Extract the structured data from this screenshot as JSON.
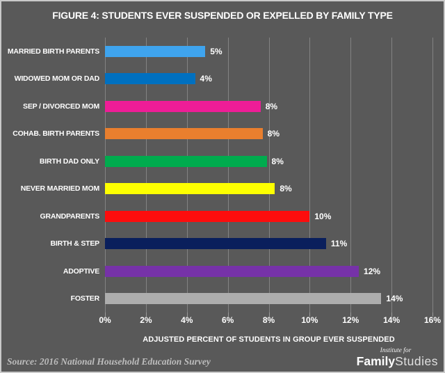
{
  "title": "FIGURE 4: STUDENTS EVER SUSPENDED OR EXPELLED BY FAMILY TYPE",
  "chart_data": {
    "type": "bar",
    "orientation": "horizontal",
    "title": "FIGURE 4: STUDENTS EVER SUSPENDED OR EXPELLED BY FAMILY TYPE",
    "categories": [
      "MARRIED BIRTH PARENTS",
      "WIDOWED MOM OR DAD",
      "SEP / DIVORCED MOM",
      "COHAB. BIRTH PARENTS",
      "BIRTH DAD ONLY",
      "NEVER MARRIED MOM",
      "GRANDPARENTS",
      "BIRTH & STEP",
      "ADOPTIVE",
      "FOSTER"
    ],
    "values": [
      4.9,
      4.4,
      7.6,
      7.7,
      7.9,
      8.3,
      10.0,
      10.8,
      12.4,
      13.5
    ],
    "value_labels": [
      "5%",
      "4%",
      "8%",
      "8%",
      "8%",
      "8%",
      "10%",
      "11%",
      "12%",
      "14%"
    ],
    "bar_colors": [
      "#3FA4EE",
      "#0070C0",
      "#EE1D97",
      "#E97F2E",
      "#00AB4E",
      "#FDFF00",
      "#FD0D0D",
      "#0A1F5C",
      "#7632A8",
      "#ADADAD"
    ],
    "xlabel": "ADJUSTED PERCENT OF STUDENTS IN GROUP EVER SUSPENDED",
    "ylabel": "",
    "x_ticks": [
      "0%",
      "2%",
      "4%",
      "6%",
      "8%",
      "10%",
      "12%",
      "14%",
      "16%"
    ],
    "x_tick_values": [
      0,
      2,
      4,
      6,
      8,
      10,
      12,
      14,
      16
    ],
    "xlim": [
      0,
      16
    ],
    "grid": true,
    "legend": false,
    "background_color": "#595959",
    "grid_color": "#838383",
    "text_color": "#FFFFFF"
  },
  "source": "Source: 2016 National Household Education Survey",
  "logo": {
    "institute_for": "Institute for",
    "family": "Family",
    "studies": "Studies"
  }
}
